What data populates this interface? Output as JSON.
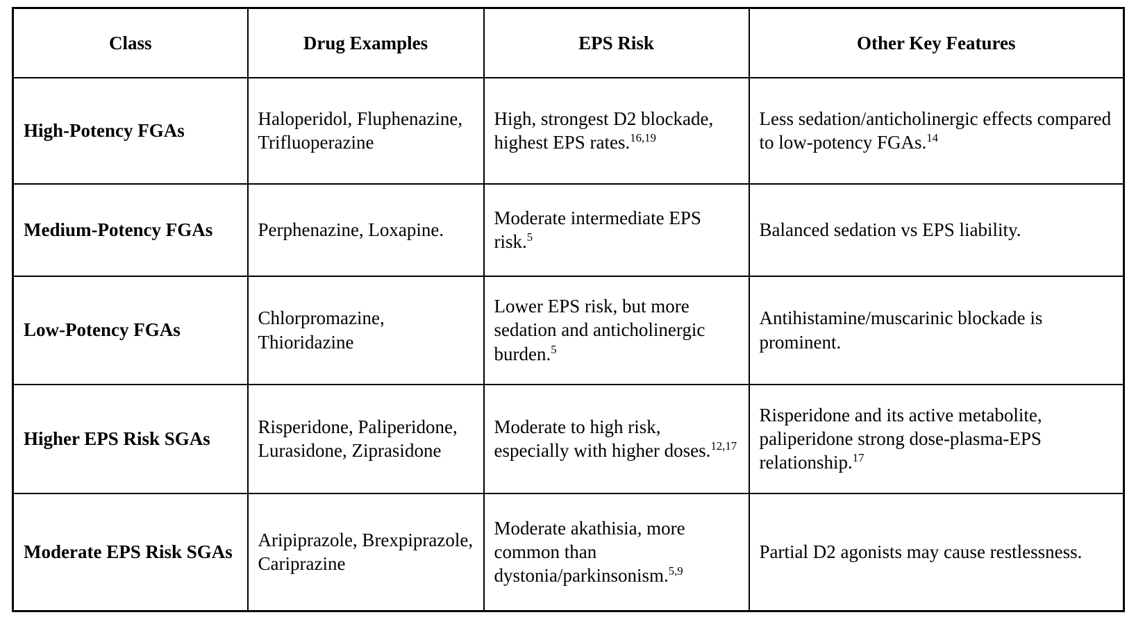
{
  "document": {
    "table": {
      "headers": [
        "Class",
        "Drug Examples",
        "EPS Risk",
        "Other Key Features"
      ],
      "rows": [
        {
          "class": "High-Potency FGAs",
          "drugs": "Haloperidol, Fluphenazine, Trifluoperazine",
          "eps": "High, strongest D2 blockade, highest EPS rates.",
          "eps_ref": "16,19",
          "features": "Less sedation/anticholinergic effects compared to low-potency FGAs.",
          "features_ref": "14"
        },
        {
          "class": "Medium-Potency FGAs",
          "drugs": "Perphenazine, Loxapine.",
          "eps": "Moderate intermediate EPS risk.",
          "eps_ref": "5",
          "features": "Balanced sedation vs EPS liability.",
          "features_ref": ""
        },
        {
          "class": "Low-Potency FGAs",
          "drugs": "Chlorpromazine, Thioridazine",
          "eps": "Lower EPS risk, but more sedation and anticholinergic burden.",
          "eps_ref": "5",
          "features": "Antihistamine/muscarinic blockade is prominent.",
          "features_ref": ""
        },
        {
          "class": "Higher EPS Risk SGAs",
          "drugs": "Risperidone, Paliperidone, Lurasidone, Ziprasidone",
          "eps": "Moderate to high risk, especially with higher doses.",
          "eps_ref": "12,17",
          "features": "Risperidone and its active metabolite, paliperidone strong dose-plasma-EPS relationship.",
          "features_ref": "17"
        },
        {
          "class": "Moderate EPS Risk SGAs",
          "drugs": "Aripiprazole, Brexpiprazole, Cariprazine",
          "eps": "Moderate akathisia, more common than dystonia/parkinsonism.",
          "eps_ref": "5,9",
          "features": "Partial D2 agonists may cause restlessness.",
          "features_ref": ""
        }
      ]
    }
  }
}
